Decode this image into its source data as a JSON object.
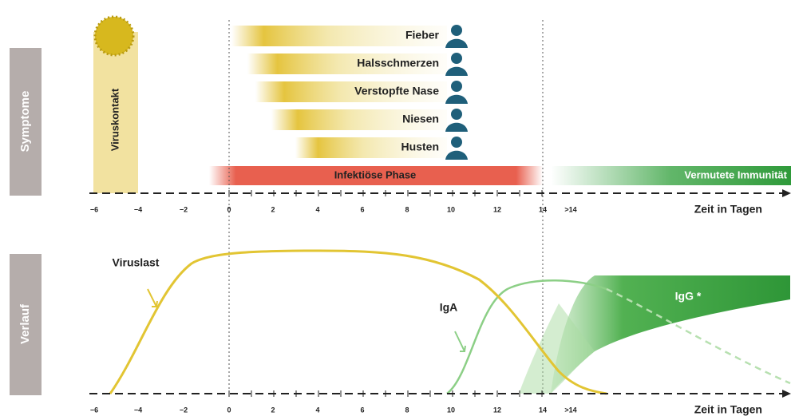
{
  "side_labels": [
    "Symptome",
    "Verlauf"
  ],
  "contact": "Viruskontakt",
  "symptoms": [
    "Fieber",
    "Halsschmerzen",
    "Verstopfte Nase",
    "Niesen",
    "Husten"
  ],
  "phases": {
    "infectious": "Infektiöse Phase",
    "immunity": "Vermutete Immunität"
  },
  "axis": {
    "ticks": [
      "−6",
      "−4",
      "−2",
      "0",
      "2",
      "4",
      "6",
      "8",
      "10",
      "12",
      "14",
      ">14"
    ],
    "title": "Zeit in Tagen"
  },
  "curves": {
    "viral_load": "Viruslast",
    "iga": "IgA",
    "igg": "IgG *"
  }
}
